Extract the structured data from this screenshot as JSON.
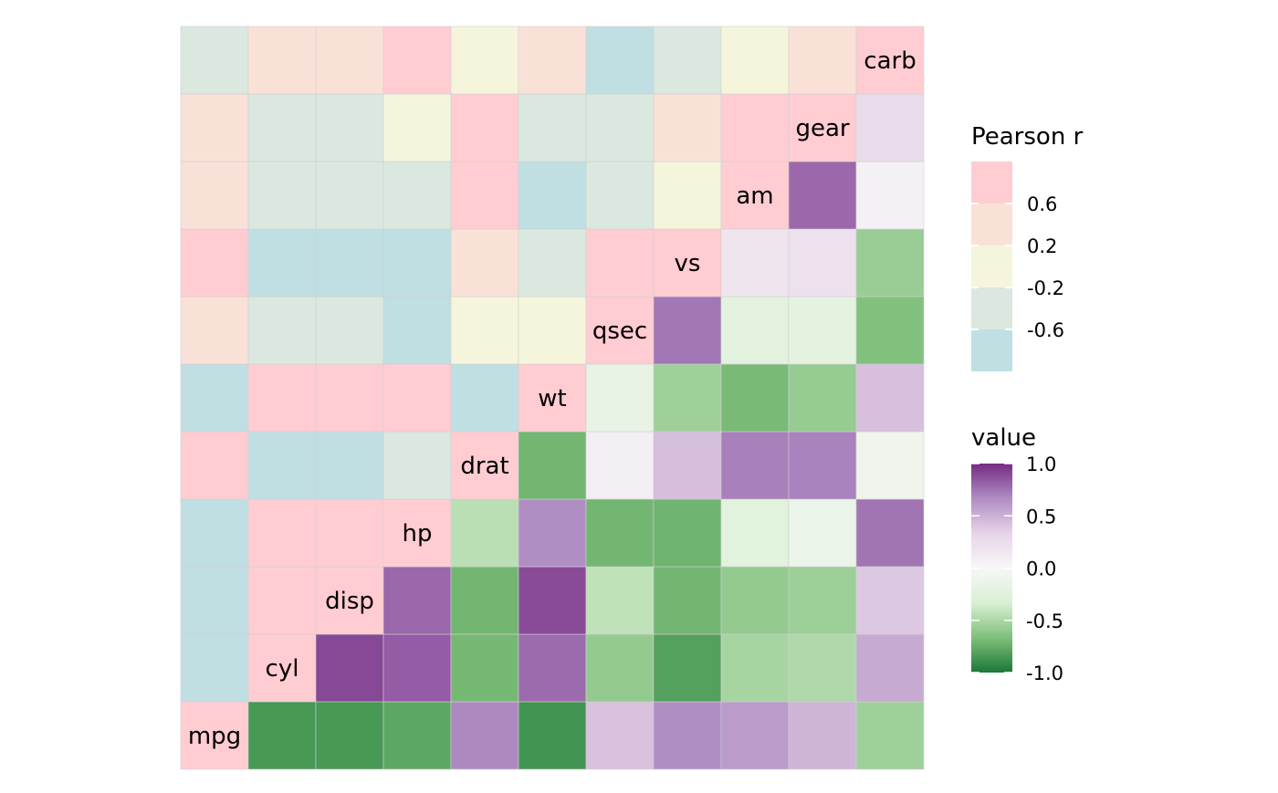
{
  "chart_data": {
    "type": "heatmap",
    "variables": [
      "mpg",
      "cyl",
      "disp",
      "hp",
      "drat",
      "wt",
      "qsec",
      "vs",
      "am",
      "gear",
      "carb"
    ],
    "values": [
      [
        1.0,
        -0.85,
        -0.85,
        -0.78,
        0.68,
        -0.87,
        0.42,
        0.66,
        0.6,
        0.48,
        -0.55
      ],
      [
        -0.85,
        1.0,
        0.9,
        0.83,
        -0.7,
        0.78,
        -0.59,
        -0.81,
        -0.52,
        -0.49,
        0.53
      ],
      [
        -0.85,
        0.9,
        1.0,
        0.79,
        -0.71,
        0.89,
        -0.43,
        -0.71,
        -0.59,
        -0.56,
        0.39
      ],
      [
        -0.78,
        0.83,
        0.79,
        1.0,
        -0.45,
        0.66,
        -0.71,
        -0.72,
        -0.24,
        -0.13,
        0.75
      ],
      [
        0.68,
        -0.7,
        -0.71,
        -0.45,
        1.0,
        -0.71,
        0.09,
        0.44,
        0.71,
        0.7,
        -0.09
      ],
      [
        -0.87,
        0.78,
        0.89,
        0.66,
        -0.71,
        1.0,
        -0.17,
        -0.55,
        -0.69,
        -0.58,
        0.43
      ],
      [
        0.42,
        -0.59,
        -0.43,
        -0.71,
        0.09,
        -0.17,
        1.0,
        0.74,
        -0.23,
        -0.21,
        -0.66
      ],
      [
        0.66,
        -0.81,
        -0.71,
        -0.72,
        0.44,
        -0.55,
        0.74,
        1.0,
        0.17,
        0.21,
        -0.57
      ],
      [
        0.6,
        -0.52,
        -0.59,
        -0.24,
        0.71,
        -0.69,
        -0.23,
        0.17,
        1.0,
        0.79,
        0.06
      ],
      [
        0.48,
        -0.49,
        -0.56,
        -0.13,
        0.7,
        -0.58,
        -0.21,
        0.21,
        0.79,
        1.0,
        0.27
      ],
      [
        -0.55,
        0.53,
        0.39,
        0.75,
        -0.09,
        0.43,
        -0.66,
        -0.57,
        0.06,
        0.27,
        1.0
      ]
    ],
    "upper_triangle_fill": "Pearson r (binned)",
    "lower_triangle_fill": "value (continuous)",
    "legends": [
      {
        "title": "Pearson r",
        "type": "binned",
        "labels": [
          "0.6",
          "0.2",
          "-0.2",
          "-0.6"
        ],
        "colors": [
          "#FFCCD1",
          "#FAE1D8",
          "#F5F5DC",
          "#DAE8DF",
          "#BFDFE3"
        ]
      },
      {
        "title": "value",
        "type": "gradient",
        "limits": [
          -1.0,
          1.0
        ],
        "labels": [
          "1.0",
          "0.5",
          "0.0",
          "-0.5",
          "-1.0"
        ],
        "colors": [
          "#1B7837",
          "#7FBF7B",
          "#D9F0D3",
          "#F7F7F7",
          "#E7D4E8",
          "#AF8DC3",
          "#762A83"
        ]
      }
    ]
  }
}
